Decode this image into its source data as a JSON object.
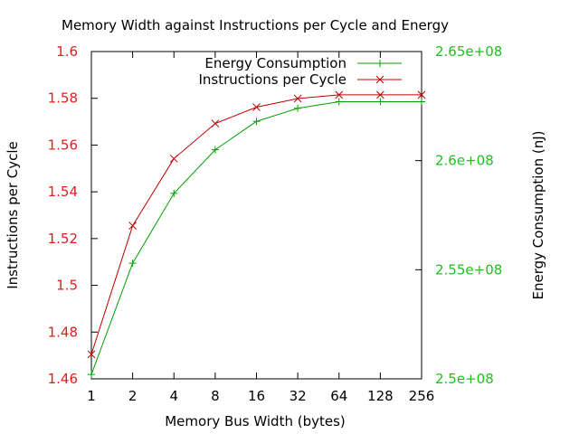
{
  "chart_data": {
    "type": "line",
    "title": "Memory Width against Instructions per Cycle and Energy",
    "xlabel": "Memory Bus Width (bytes)",
    "ylabel": "Instructions per Cycle",
    "y2label": "Energy Consumption (nJ)",
    "categories": [
      "1",
      "2",
      "4",
      "8",
      "16",
      "32",
      "64",
      "128",
      "256"
    ],
    "ylim": [
      1.46,
      1.6
    ],
    "y2lim": [
      250000000,
      265000000
    ],
    "yticks": [
      "1.46",
      "1.48",
      "1.5",
      "1.52",
      "1.54",
      "1.56",
      "1.58",
      "1.6"
    ],
    "y2ticks": [
      "2.5e+08",
      "2.55e+08",
      "2.6e+08",
      "2.65e+08"
    ],
    "grid": false,
    "legend_position": "top-right",
    "series": [
      {
        "name": "Energy Consumption",
        "axis": "right",
        "color": "#00a000",
        "marker": "plus",
        "values": [
          250200000,
          255300000,
          258500000,
          260500000,
          261800000,
          262400000,
          262700000,
          262700000,
          262700000
        ]
      },
      {
        "name": "Instructions per Cycle",
        "axis": "left",
        "color": "#c00000",
        "marker": "cross",
        "values": [
          1.4705,
          1.5255,
          1.5542,
          1.5692,
          1.5762,
          1.5799,
          1.5815,
          1.5815,
          1.5815
        ]
      }
    ]
  },
  "colors": {
    "left_axis_text": "#e02020",
    "right_axis_text": "#20c020",
    "text": "#000000"
  }
}
